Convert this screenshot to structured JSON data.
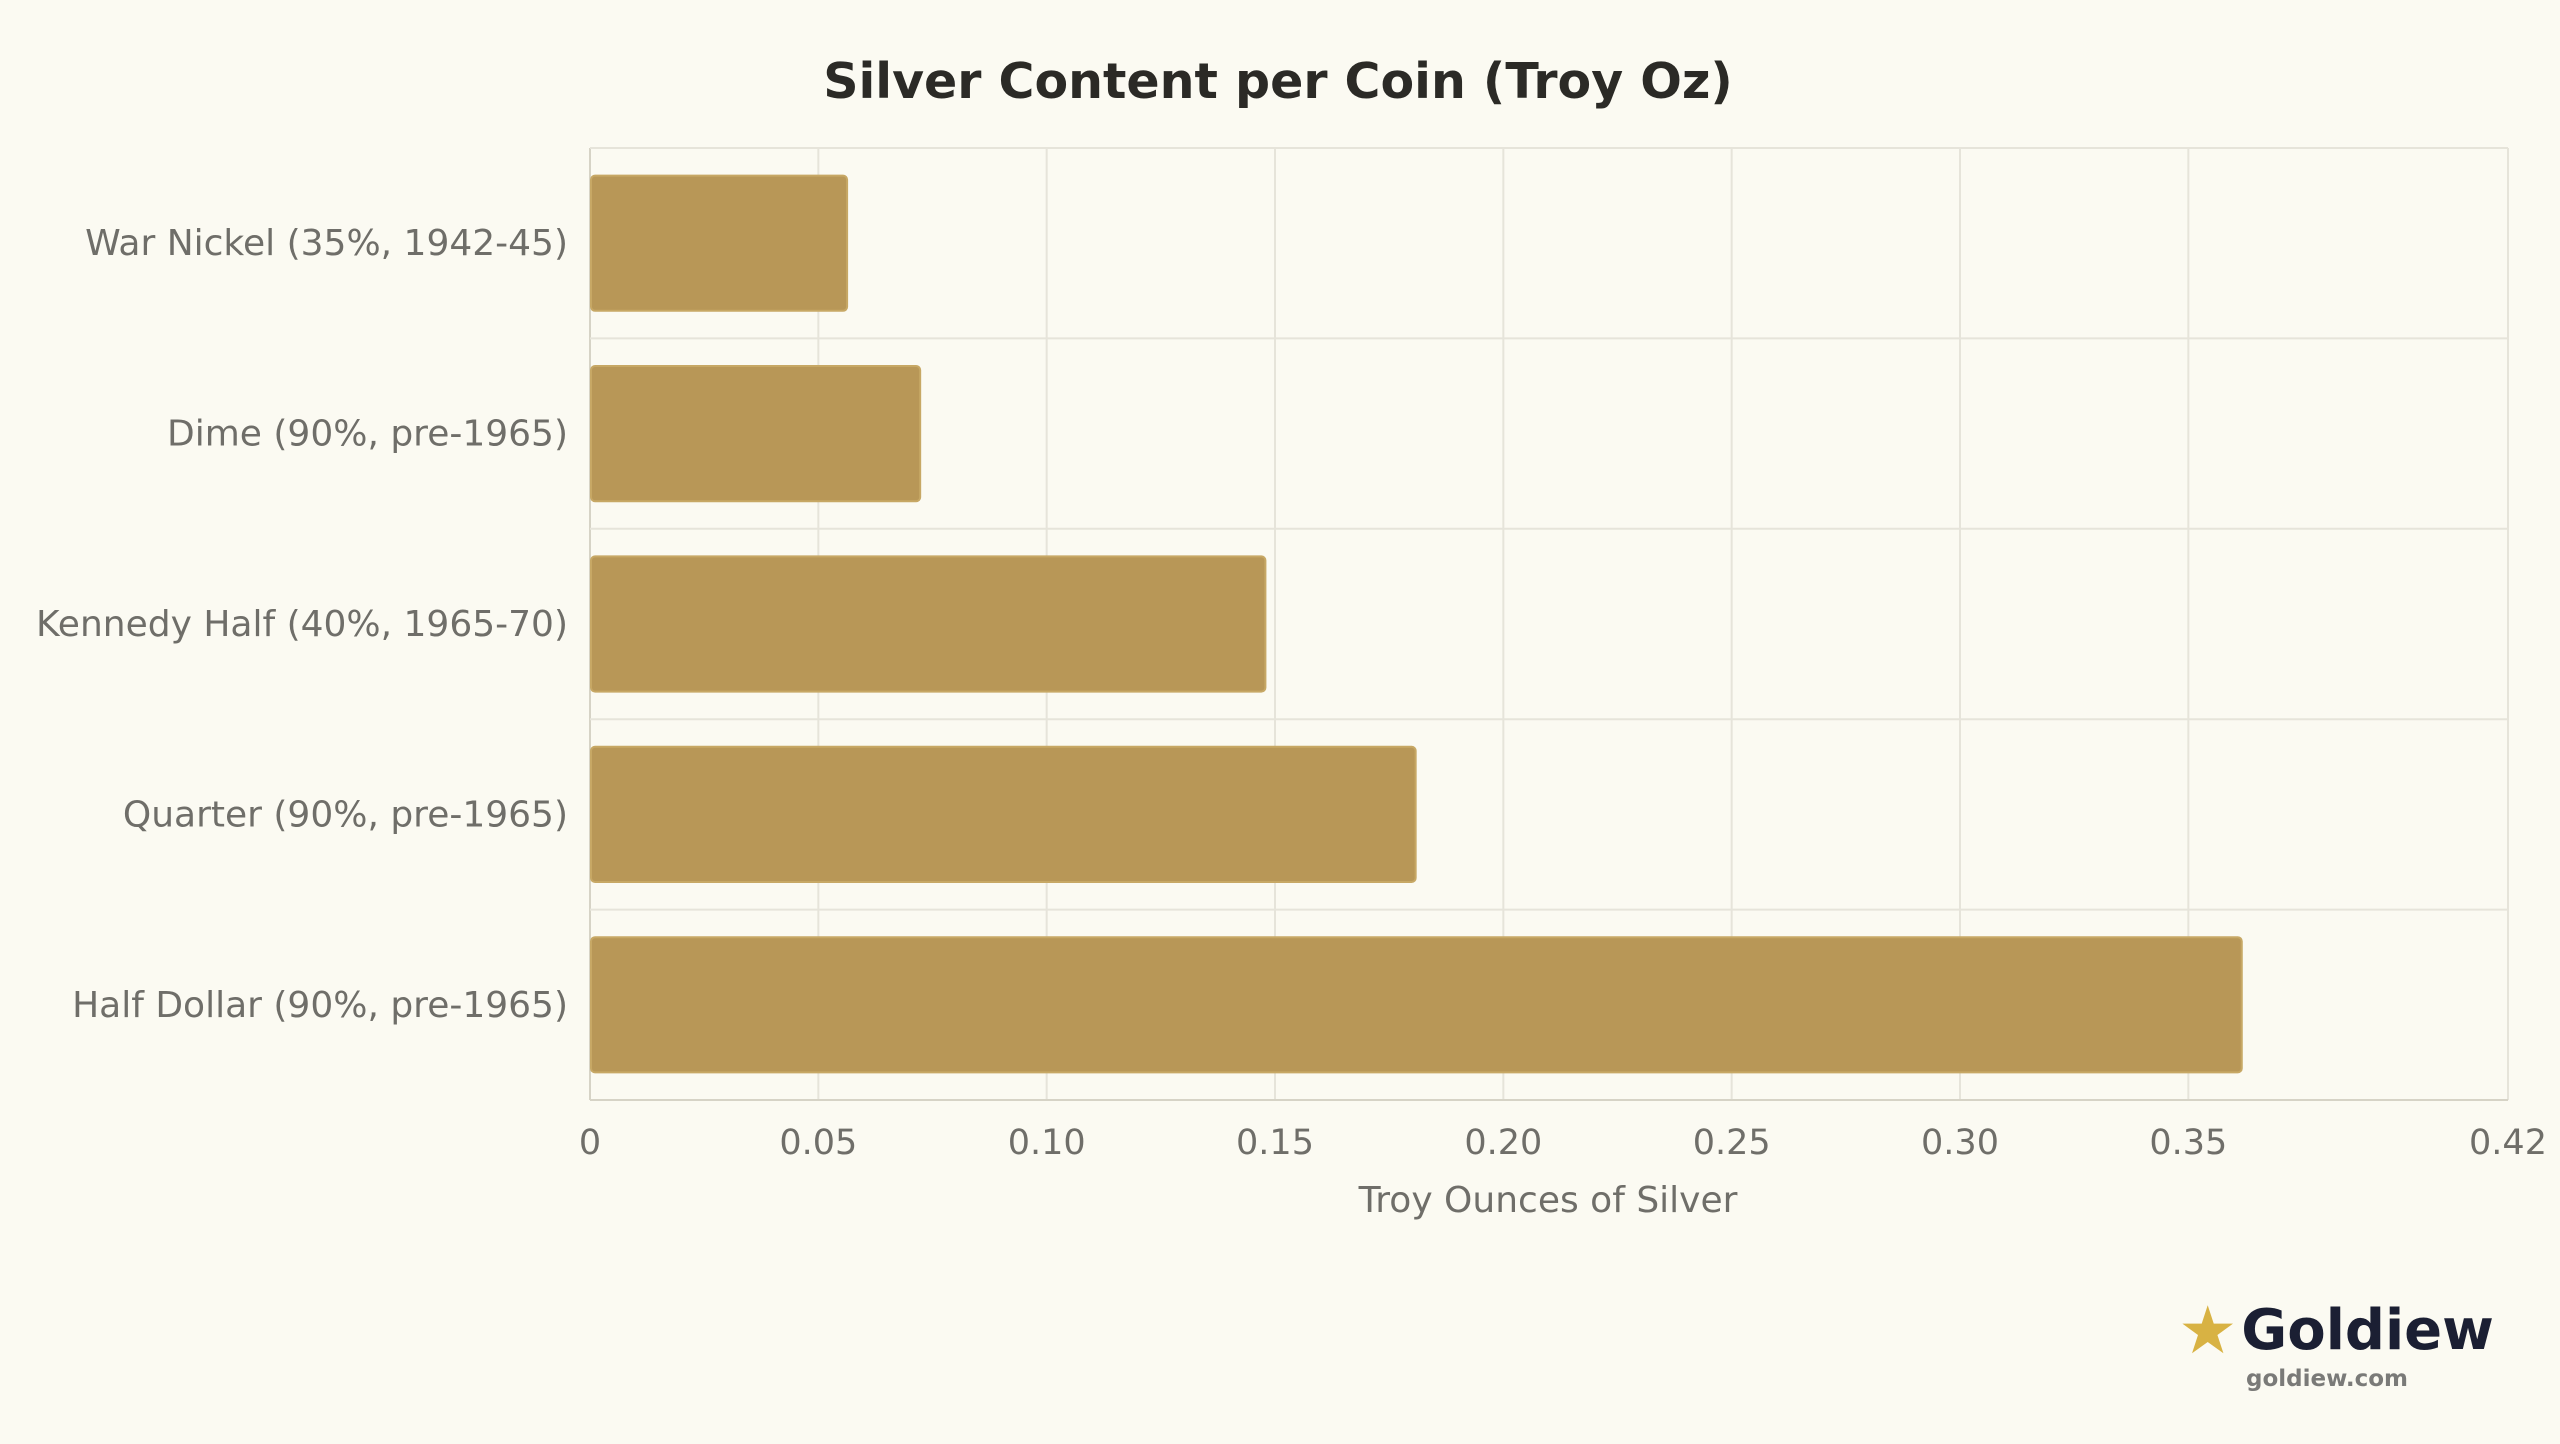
{
  "chart_data": {
    "type": "bar",
    "orientation": "horizontal",
    "title": "Silver Content per Coin (Troy Oz)",
    "xlabel": "Troy Ounces of Silver",
    "ylabel": "",
    "categories": [
      "War Nickel (35%, 1942-45)",
      "Dime (90%, pre-1965)",
      "Kennedy Half (40%, 1965-70)",
      "Quarter (90%, pre-1965)",
      "Half Dollar (90%, pre-1965)"
    ],
    "values": [
      0.0563,
      0.0723,
      0.1479,
      0.1808,
      0.3617
    ],
    "xlim": [
      0,
      0.42
    ],
    "x_ticks": [
      0,
      0.05,
      0.1,
      0.15,
      0.2,
      0.25,
      0.3,
      0.35,
      0.42
    ],
    "x_tick_labels": [
      "0",
      "0.05",
      "0.10",
      "0.15",
      "0.20",
      "0.25",
      "0.30",
      "0.35",
      "0.42"
    ],
    "grid": true,
    "legend": "none",
    "colors": {
      "bar": "#b89757",
      "background": "#fbfaf2"
    }
  },
  "brand": {
    "name": "Goldiew",
    "url": "goldiew.com",
    "icon": "star-icon"
  }
}
